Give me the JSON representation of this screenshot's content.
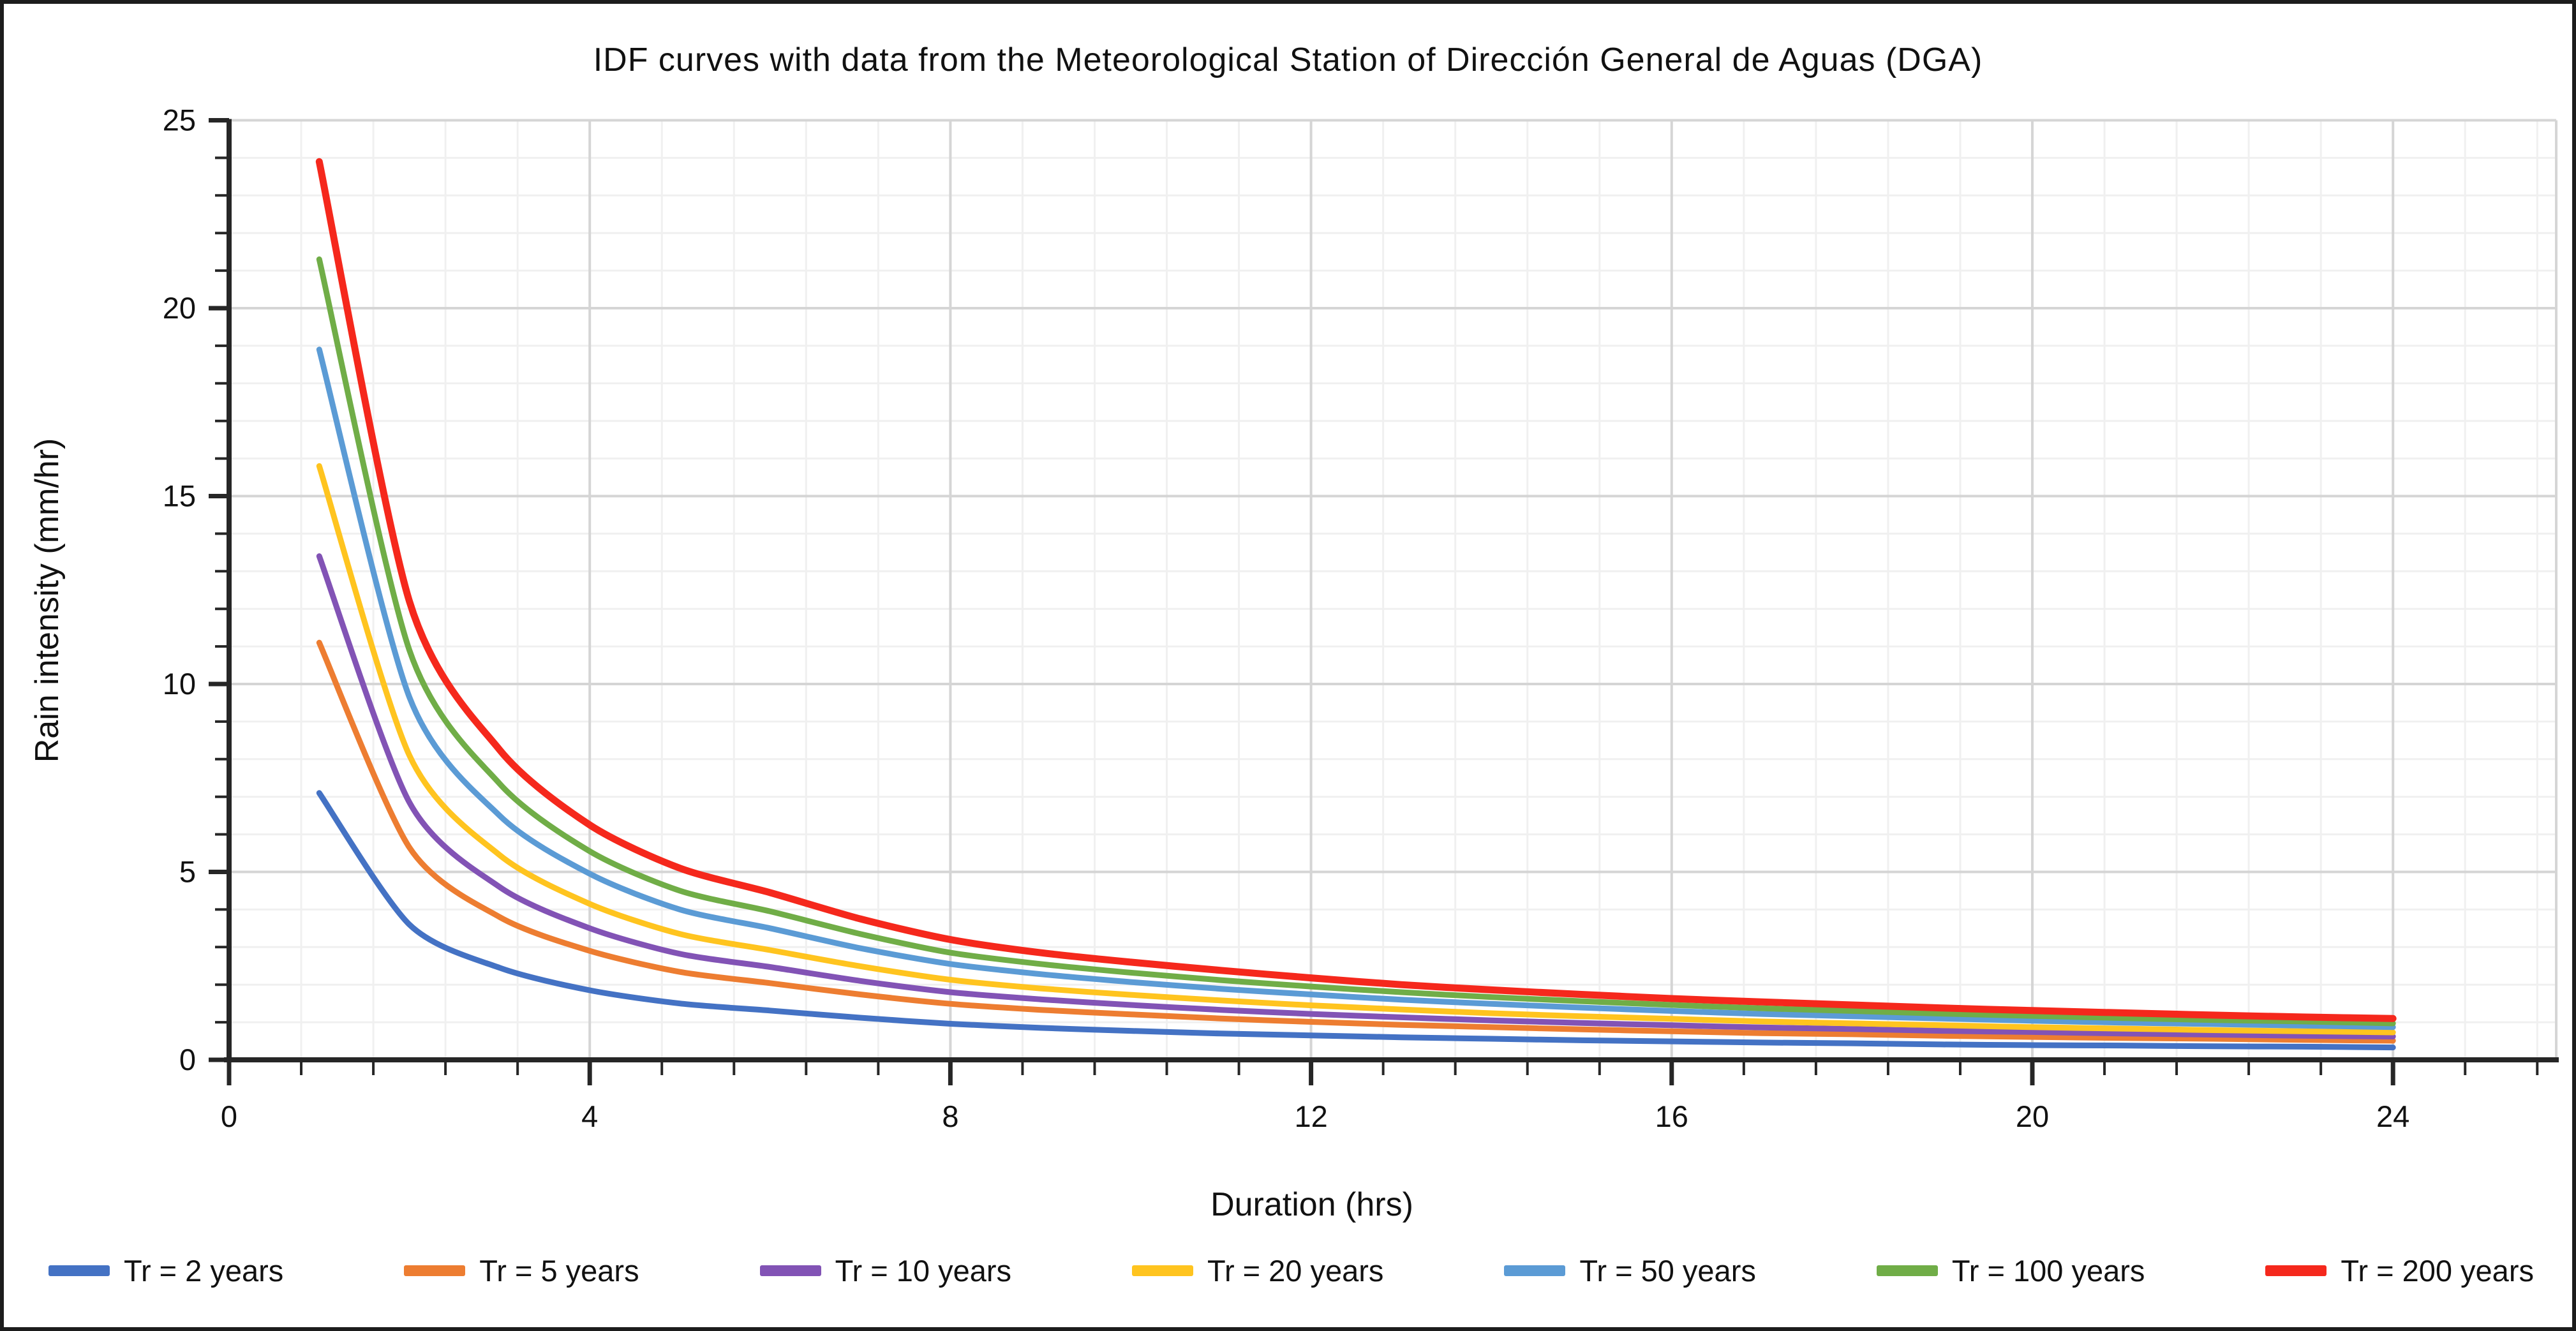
{
  "title": "IDF curves with data from the Meteorological Station of Dirección General de Aguas (DGA)",
  "figure": {
    "background": "#ffffff",
    "border_color": "#1c1c1c",
    "axis_color": "#262626",
    "text_color": "#111111"
  },
  "chart_data": {
    "type": "line",
    "title": "IDF curves with data from the Meteorological Station of Dirección General de Aguas (DGA)",
    "xlabel": "Duration (hrs)",
    "ylabel": "Rain intensity (mm/hr)",
    "xlim": [
      0,
      25.8
    ],
    "ylim": [
      0,
      25
    ],
    "x_major_ticks": [
      0,
      4,
      8,
      12,
      16,
      20,
      24
    ],
    "x_minor_step": 0.8,
    "y_major_ticks": [
      0,
      5,
      10,
      15,
      20,
      25
    ],
    "y_minor_step": 1,
    "grid": {
      "minor_color": "#F0F0F0",
      "major_color": "#D5D5D5",
      "minor_on": true,
      "major_on": true
    },
    "legend_position": "bottom",
    "x": [
      1,
      2,
      3,
      4,
      5,
      6,
      7,
      8,
      9,
      10,
      11,
      12,
      13,
      14,
      15,
      16,
      17,
      18,
      19,
      20,
      21,
      22,
      23,
      24
    ],
    "series": [
      {
        "name": "Tr = 2 years",
        "color": "#4472C4",
        "values": [
          7.1,
          3.6,
          2.45,
          1.85,
          1.5,
          1.31,
          1.12,
          0.96,
          0.85,
          0.77,
          0.7,
          0.65,
          0.6,
          0.56,
          0.52,
          0.49,
          0.46,
          0.44,
          0.41,
          0.39,
          0.38,
          0.36,
          0.35,
          0.33
        ]
      },
      {
        "name": "Tr = 5 years",
        "color": "#ED7D31",
        "values": [
          11.1,
          5.65,
          3.8,
          2.9,
          2.34,
          2.04,
          1.74,
          1.49,
          1.33,
          1.21,
          1.1,
          1.01,
          0.93,
          0.87,
          0.81,
          0.76,
          0.71,
          0.68,
          0.64,
          0.61,
          0.58,
          0.56,
          0.53,
          0.51
        ]
      },
      {
        "name": "Tr = 10 years",
        "color": "#8253B5",
        "values": [
          13.4,
          6.85,
          4.6,
          3.5,
          2.82,
          2.47,
          2.1,
          1.8,
          1.61,
          1.46,
          1.33,
          1.22,
          1.13,
          1.05,
          0.98,
          0.92,
          0.86,
          0.82,
          0.77,
          0.74,
          0.7,
          0.67,
          0.64,
          0.62
        ]
      },
      {
        "name": "Tr = 20 years",
        "color": "#FFC41F",
        "values": [
          15.8,
          8.1,
          5.45,
          4.15,
          3.35,
          2.92,
          2.49,
          2.13,
          1.9,
          1.73,
          1.58,
          1.45,
          1.34,
          1.24,
          1.16,
          1.09,
          1.02,
          0.97,
          0.92,
          0.87,
          0.83,
          0.79,
          0.76,
          0.73
        ]
      },
      {
        "name": "Tr = 50 years",
        "color": "#5B9BD5",
        "values": [
          18.9,
          9.65,
          6.5,
          4.95,
          4.0,
          3.5,
          2.97,
          2.55,
          2.28,
          2.07,
          1.89,
          1.74,
          1.6,
          1.49,
          1.39,
          1.3,
          1.22,
          1.16,
          1.1,
          1.04,
          0.99,
          0.95,
          0.91,
          0.87
        ]
      },
      {
        "name": "Tr = 100 years",
        "color": "#70AD47",
        "values": [
          21.3,
          10.9,
          7.35,
          5.55,
          4.5,
          3.95,
          3.35,
          2.85,
          2.55,
          2.32,
          2.12,
          1.95,
          1.8,
          1.67,
          1.56,
          1.46,
          1.37,
          1.3,
          1.23,
          1.17,
          1.11,
          1.06,
          1.02,
          0.97
        ]
      },
      {
        "name": "Tr = 200 years",
        "color": "#F5281C",
        "values": [
          23.9,
          12.2,
          8.25,
          6.25,
          5.1,
          4.45,
          3.75,
          3.2,
          2.85,
          2.6,
          2.38,
          2.18,
          2.0,
          1.86,
          1.74,
          1.63,
          1.54,
          1.46,
          1.38,
          1.31,
          1.25,
          1.19,
          1.14,
          1.1
        ]
      }
    ]
  }
}
